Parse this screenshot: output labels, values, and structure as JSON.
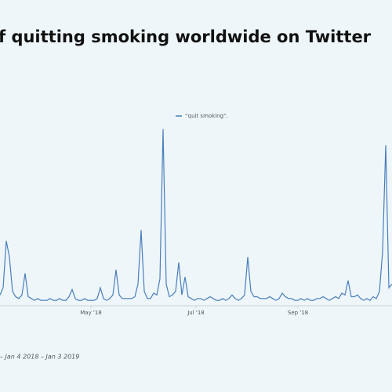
{
  "chart_data": {
    "type": "line",
    "title": "f quitting smoking worldwide on Twitter",
    "footer": "– Jan 4 2018 – Jan 3 2019",
    "series": [
      {
        "name": "“quit smoking”.",
        "color": "#4a7ebb",
        "values": [
          6,
          10,
          36,
          27,
          8,
          5,
          4,
          6,
          18,
          5,
          4,
          3,
          4,
          3,
          3,
          3,
          4,
          3,
          3,
          4,
          3,
          3,
          5,
          9,
          4,
          3,
          3,
          4,
          3,
          3,
          3,
          4,
          10,
          4,
          3,
          4,
          6,
          20,
          6,
          4,
          4,
          4,
          4,
          5,
          12,
          42,
          8,
          4,
          4,
          7,
          6,
          15,
          98,
          12,
          5,
          6,
          8,
          24,
          6,
          16,
          5,
          4,
          3,
          4,
          4,
          3,
          4,
          5,
          4,
          3,
          3,
          4,
          3,
          4,
          6,
          4,
          3,
          4,
          6,
          27,
          8,
          5,
          5,
          4,
          4,
          4,
          5,
          4,
          3,
          4,
          7,
          5,
          4,
          4,
          3,
          3,
          4,
          3,
          4,
          3,
          3,
          4,
          4,
          5,
          4,
          3,
          4,
          5,
          4,
          7,
          6,
          14,
          5,
          5,
          6,
          4,
          3,
          4,
          3,
          5,
          4,
          8,
          30,
          89,
          10,
          12
        ]
      }
    ],
    "xticks": [
      {
        "value": 29,
        "label": "May '18"
      },
      {
        "value": 62.5,
        "label": "Jul '18"
      },
      {
        "value": 95,
        "label": "Sep '18"
      }
    ],
    "ylim": [
      0,
      100
    ]
  }
}
